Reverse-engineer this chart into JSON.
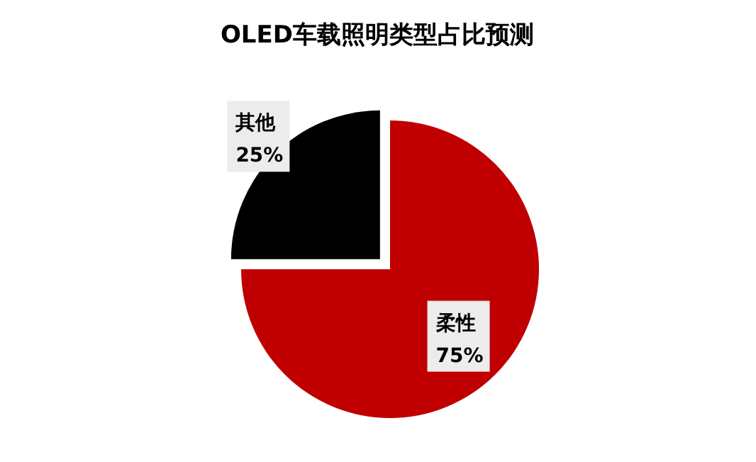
{
  "chart_data": {
    "type": "pie",
    "title": "OLED车载照明类型占比预测",
    "categories": [
      "柔性",
      "其他"
    ],
    "values": [
      75,
      25
    ],
    "colors": [
      "#c00000",
      "#000000"
    ],
    "value_labels": [
      "75%",
      "25%"
    ],
    "legend": false
  }
}
